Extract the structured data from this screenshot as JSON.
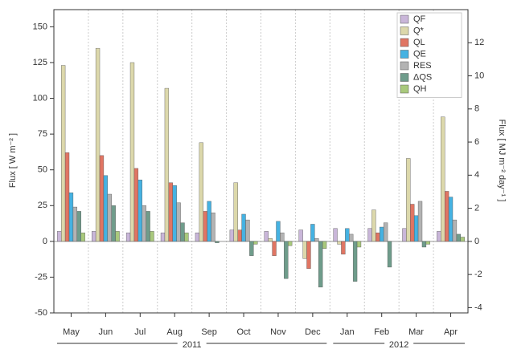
{
  "chart_data": {
    "type": "bar",
    "y_label": "Flux [ W m⁻² ]",
    "y2_label": "Flux [ MJ m⁻² day⁻¹ ]",
    "categories": [
      "May",
      "Jun",
      "Jul",
      "Aug",
      "Sep",
      "Oct",
      "Nov",
      "Dec",
      "Jan",
      "Feb",
      "Mar",
      "Apr"
    ],
    "years": [
      "2011",
      "2012"
    ],
    "series": [
      {
        "name": "QF",
        "color": "#c9b6d9",
        "values": [
          7,
          7,
          6,
          6,
          6,
          8,
          7,
          8,
          9,
          9,
          9,
          7
        ]
      },
      {
        "name": "Q*",
        "color": "#dcd8ab",
        "values": [
          123,
          135,
          125,
          107,
          69,
          41,
          2,
          -12,
          -2,
          22,
          58,
          87
        ]
      },
      {
        "name": "QL",
        "color": "#e07563",
        "values": [
          62,
          60,
          51,
          41,
          21,
          8,
          -10,
          -19,
          -9,
          6,
          26,
          35
        ]
      },
      {
        "name": "QE",
        "color": "#45b2e2",
        "values": [
          34,
          46,
          43,
          39,
          28,
          19,
          14,
          12,
          9,
          10,
          18,
          31
        ]
      },
      {
        "name": "RES",
        "color": "#b3b3b3",
        "values": [
          24,
          33,
          25,
          27,
          20,
          15,
          6,
          2,
          5,
          13,
          28,
          15
        ]
      },
      {
        "name": "ΔQS",
        "color": "#6f9c8b",
        "values": [
          21,
          25,
          21,
          13,
          -1,
          -10,
          -26,
          -32,
          -28,
          -18,
          -4,
          5
        ]
      },
      {
        "name": "QH",
        "color": "#a9c97c",
        "values": [
          6,
          7,
          7,
          6,
          0,
          -2,
          -3,
          -5,
          -4,
          0,
          -2,
          3
        ]
      }
    ],
    "ylim": [
      -50,
      162
    ],
    "yticks": [
      -50,
      -25,
      0,
      25,
      50,
      75,
      100,
      125,
      150
    ],
    "y2lim": [
      -4.32,
      14.0
    ],
    "y2ticks": [
      -4,
      -2,
      0,
      2,
      4,
      6,
      8,
      10,
      12
    ],
    "grid": true,
    "legend": "top-right"
  }
}
